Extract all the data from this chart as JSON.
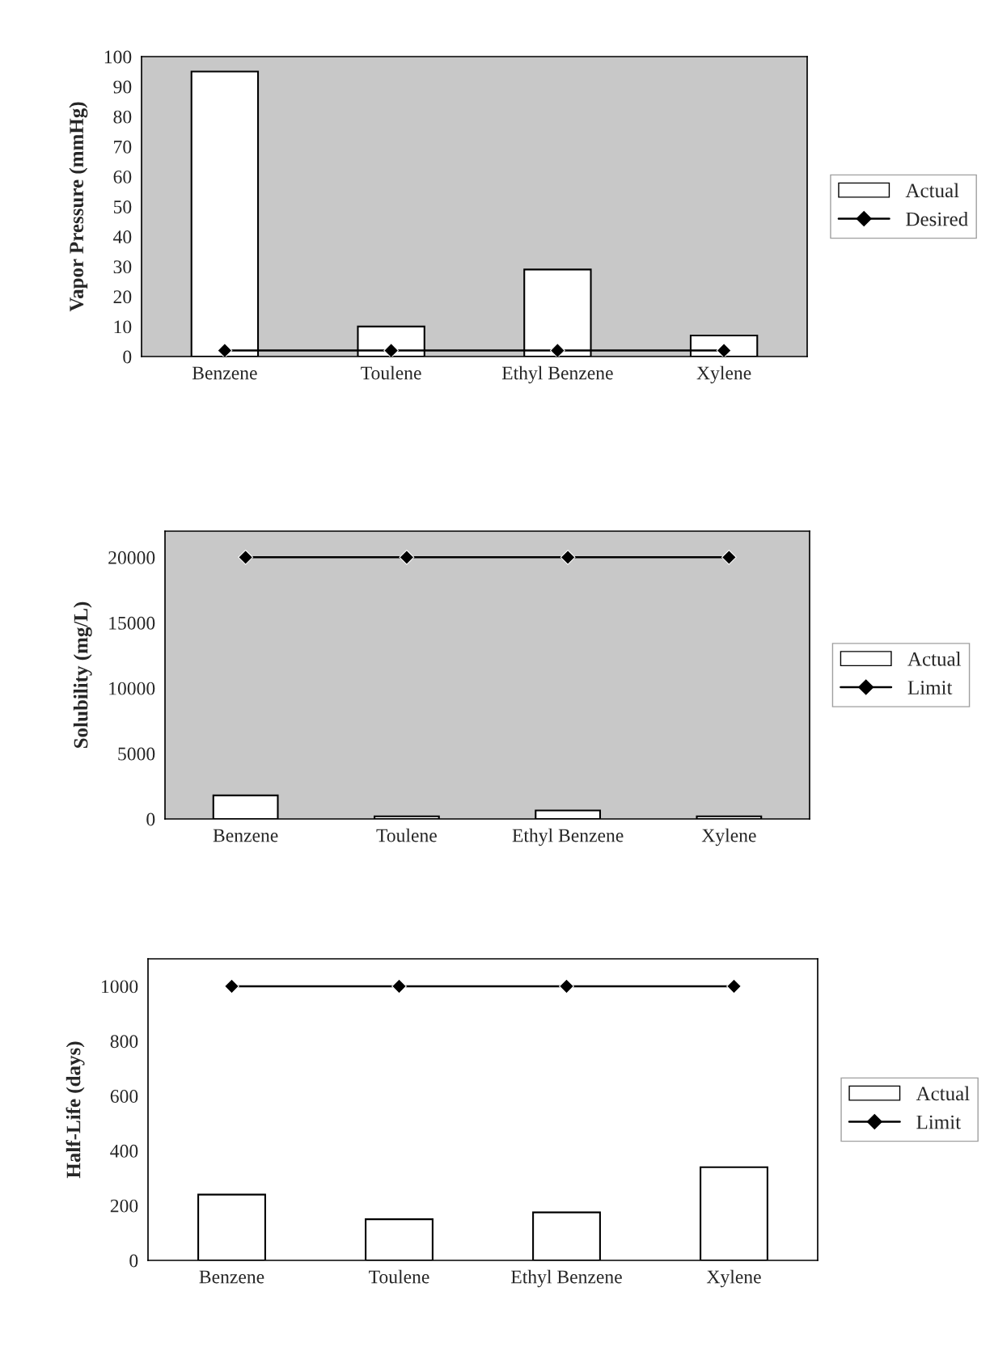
{
  "chart_data": [
    {
      "type": "bar",
      "ylabel": "Vapor Pressure (mmHg)",
      "categories": [
        "Benzene",
        "Toulene",
        "Ethyl Benzene",
        "Xylene"
      ],
      "ylim": [
        0,
        100
      ],
      "yticks": [
        0,
        10,
        20,
        30,
        40,
        50,
        60,
        70,
        80,
        90,
        100
      ],
      "grid": false,
      "legend": "right",
      "marker": "diamond",
      "series": [
        {
          "name": "Actual",
          "color": "#ffffff",
          "values": [
            95,
            10,
            29,
            7
          ]
        },
        {
          "name": "Desired",
          "type": "line",
          "color": "#000000",
          "values": [
            2,
            2,
            2,
            2
          ]
        }
      ]
    },
    {
      "type": "bar",
      "ylabel": "Solubility (mg/L)",
      "categories": [
        "Benzene",
        "Toulene",
        "Ethyl Benzene",
        "Xylene"
      ],
      "ylim": [
        0,
        22000
      ],
      "yticks": [
        0,
        5000,
        10000,
        15000,
        20000
      ],
      "grid": false,
      "legend": "right",
      "marker": "diamond",
      "series": [
        {
          "name": "Actual",
          "color": "#ffffff",
          "values": [
            1800,
            200,
            650,
            200
          ]
        },
        {
          "name": "Limit",
          "type": "line",
          "color": "#000000",
          "values": [
            20000,
            20000,
            20000,
            20000
          ]
        }
      ]
    },
    {
      "type": "bar",
      "ylabel": "Half-Life (days)",
      "categories": [
        "Benzene",
        "Toulene",
        "Ethyl Benzene",
        "Xylene"
      ],
      "ylim": [
        0,
        1100
      ],
      "yticks": [
        0,
        200,
        400,
        600,
        800,
        1000
      ],
      "grid": false,
      "legend": "right",
      "marker": "diamond",
      "series": [
        {
          "name": "Actual",
          "color": "#ffffff",
          "values": [
            240,
            150,
            175,
            340
          ]
        },
        {
          "name": "Limit",
          "type": "line",
          "color": "#000000",
          "values": [
            1000,
            1000,
            1000,
            1000
          ]
        }
      ]
    }
  ]
}
